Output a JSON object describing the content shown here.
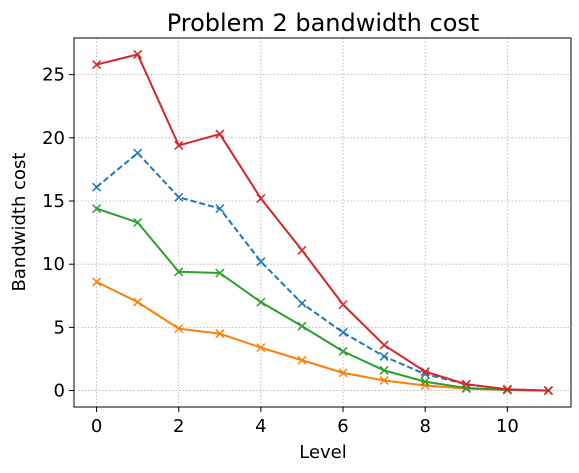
{
  "chart_data": {
    "type": "line",
    "title": "Problem 2 bandwidth cost",
    "xlabel": "Level",
    "ylabel": "Bandwidth cost",
    "xlim": [
      -0.55,
      11.55
    ],
    "ylim": [
      -1.3,
      27.9
    ],
    "xticks": [
      0,
      2,
      4,
      6,
      8,
      10
    ],
    "yticks": [
      0,
      5,
      10,
      15,
      20,
      25
    ],
    "grid": true,
    "marker": "x",
    "series": [
      {
        "color": "#1f77b4",
        "dashed": true,
        "x": [
          0,
          1,
          2,
          3,
          4,
          5,
          6,
          7,
          8,
          9,
          10,
          11
        ],
        "values": [
          16.1,
          18.8,
          15.3,
          14.4,
          10.2,
          6.9,
          4.6,
          2.7,
          1.3,
          0.5,
          0.1,
          0.0
        ]
      },
      {
        "color": "#ff7f0e",
        "dashed": false,
        "x": [
          0,
          1,
          2,
          3,
          4,
          5,
          6,
          7,
          8,
          9,
          10,
          11
        ],
        "values": [
          8.6,
          7.0,
          4.9,
          4.5,
          3.4,
          2.4,
          1.4,
          0.8,
          0.4,
          0.15,
          0.05,
          0.0
        ]
      },
      {
        "color": "#2ca02c",
        "dashed": false,
        "x": [
          0,
          1,
          2,
          3,
          4,
          5,
          6,
          7,
          8,
          9,
          10,
          11
        ],
        "values": [
          14.4,
          13.3,
          9.4,
          9.3,
          7.0,
          5.1,
          3.1,
          1.6,
          0.7,
          0.2,
          0.05,
          0.0
        ]
      },
      {
        "color": "#d62728",
        "dashed": false,
        "x": [
          0,
          1,
          2,
          3,
          4,
          5,
          6,
          7,
          8,
          9,
          10,
          11
        ],
        "values": [
          25.8,
          26.6,
          19.4,
          20.3,
          15.2,
          11.1,
          6.8,
          3.6,
          1.5,
          0.5,
          0.1,
          0.0
        ]
      }
    ]
  }
}
